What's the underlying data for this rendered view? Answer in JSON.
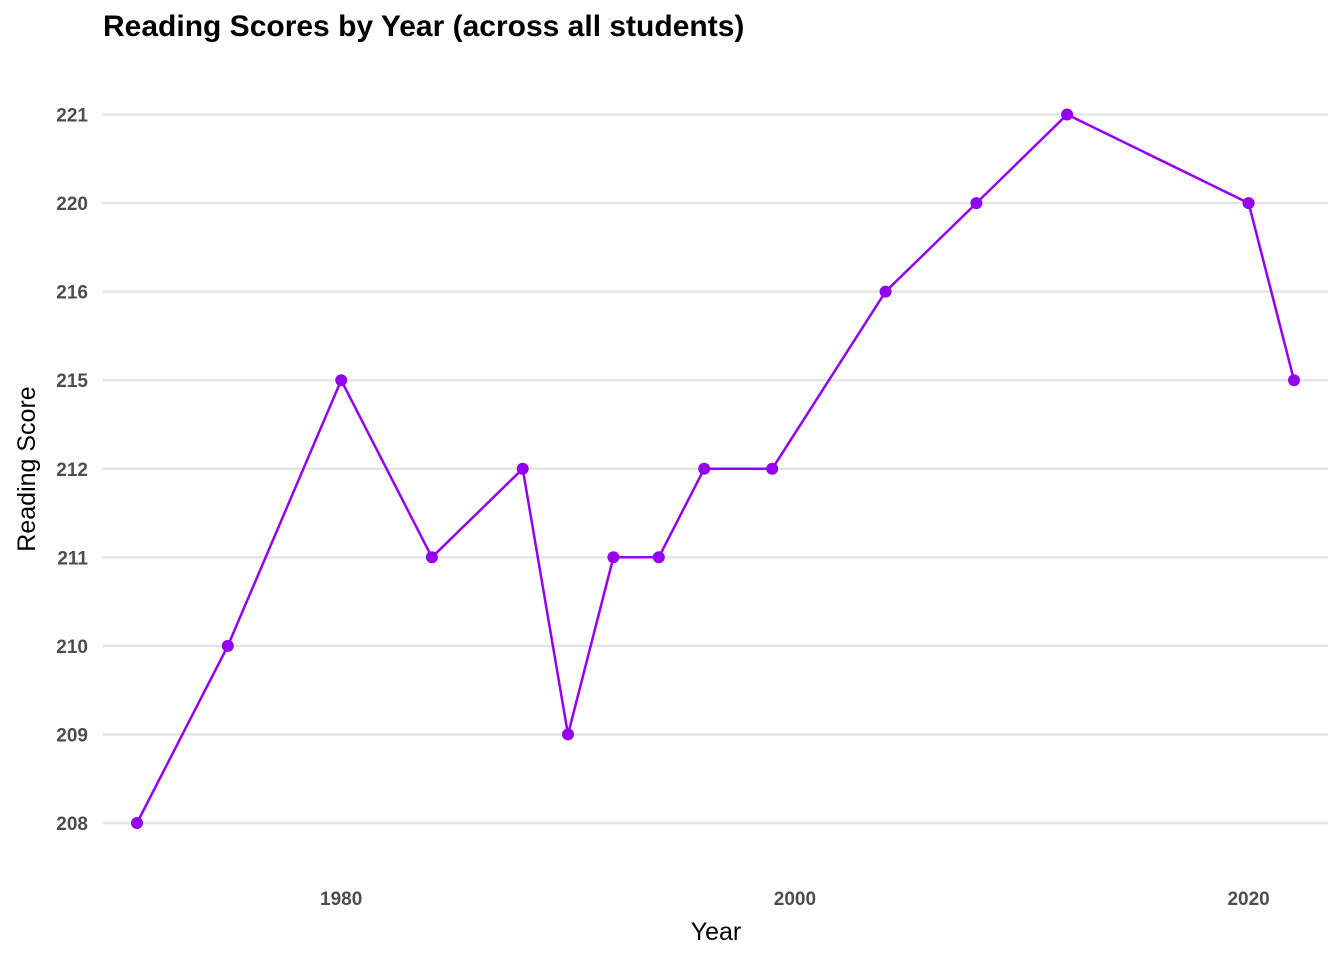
{
  "chart_data": {
    "type": "line",
    "title": "Reading Scores by Year (across all students)",
    "xlabel": "Year",
    "ylabel": "Reading Score",
    "x_ticks": [
      "1980",
      "2000",
      "2020"
    ],
    "y_ticks": [
      "208",
      "209",
      "210",
      "211",
      "212",
      "215",
      "216",
      "220",
      "221"
    ],
    "x_axis_note": "x is continuous year",
    "y_axis_note": "y axis is categorical/discrete: only observed score values are shown as evenly spaced levels",
    "xlim": [
      1969.5,
      2023.5
    ],
    "grid": "horizontal major only",
    "series": [
      {
        "color": "#9400ee",
        "points": [
          {
            "x": 1971,
            "y": "208"
          },
          {
            "x": 1975,
            "y": "210"
          },
          {
            "x": 1980,
            "y": "215"
          },
          {
            "x": 1984,
            "y": "211"
          },
          {
            "x": 1988,
            "y": "212"
          },
          {
            "x": 1990,
            "y": "209"
          },
          {
            "x": 1992,
            "y": "211"
          },
          {
            "x": 1994,
            "y": "211"
          },
          {
            "x": 1996,
            "y": "212"
          },
          {
            "x": 1999,
            "y": "212"
          },
          {
            "x": 2004,
            "y": "216"
          },
          {
            "x": 2008,
            "y": "220"
          },
          {
            "x": 2012,
            "y": "221"
          },
          {
            "x": 2020,
            "y": "220"
          },
          {
            "x": 2022,
            "y": "215"
          }
        ]
      }
    ]
  }
}
